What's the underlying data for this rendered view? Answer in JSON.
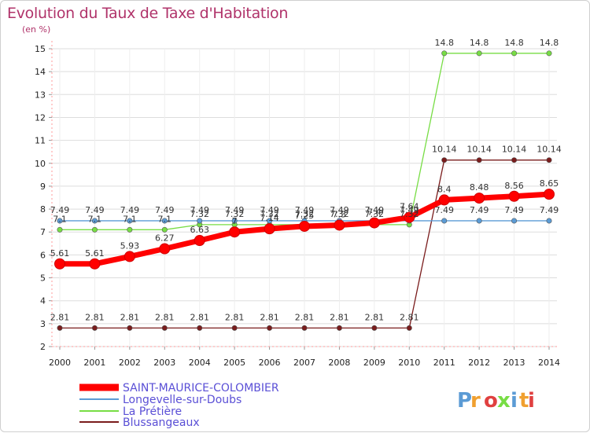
{
  "title": "Evolution du Taux de Taxe d'Habitation",
  "subtitle": "(en %)",
  "logo": "Proxiti",
  "chart_data": {
    "type": "line",
    "title": "Evolution du Taux de Taxe d'Habitation",
    "ylabel": "(en %)",
    "x": [
      "2000",
      "2001",
      "2002",
      "2003",
      "2004",
      "2005",
      "2006",
      "2007",
      "2008",
      "2009",
      "2010",
      "2011",
      "2012",
      "2013",
      "2014"
    ],
    "ylim": [
      2,
      15
    ],
    "yticks": [
      2,
      3,
      4,
      5,
      6,
      7,
      8,
      9,
      10,
      11,
      12,
      13,
      14,
      15
    ],
    "grid": true,
    "legend_position": "bottom-left",
    "series": [
      {
        "name": "SAINT-MAURICE-COLOMBIER",
        "color": "#ff0000",
        "values": [
          5.61,
          5.61,
          5.93,
          6.27,
          6.63,
          7.0,
          7.14,
          7.25,
          7.3,
          7.4,
          7.64,
          8.4,
          8.48,
          8.56,
          8.65
        ],
        "labels": [
          "5.61",
          "5.61",
          "5.93",
          "6.27",
          "6.63",
          "7",
          "7.14",
          "7.25",
          "7.3",
          "7.4",
          "7.64",
          "8.4",
          "8.48",
          "8.56",
          "8.65"
        ]
      },
      {
        "name": "Longevelle-sur-Doubs",
        "color": "#5b9bd5",
        "values": [
          7.49,
          7.49,
          7.49,
          7.49,
          7.49,
          7.49,
          7.49,
          7.49,
          7.49,
          7.49,
          7.49,
          7.49,
          7.49,
          7.49,
          7.49
        ],
        "labels": [
          "7.49",
          "7.49",
          "7.49",
          "7.49",
          "7.49",
          "7.49",
          "7.49",
          "7.49",
          "7.49",
          "7.49",
          "7.49",
          "7.49",
          "7.49",
          "7.49",
          "7.49"
        ]
      },
      {
        "name": "La Prétière",
        "color": "#77dd44",
        "values": [
          7.1,
          7.1,
          7.1,
          7.1,
          7.32,
          7.32,
          7.32,
          7.32,
          7.32,
          7.32,
          7.32,
          14.8,
          14.8,
          14.8,
          14.8
        ],
        "labels": [
          "7.1",
          "7.1",
          "7.1",
          "7.1",
          "7.32",
          "7.32",
          "7.32",
          "7.32",
          "7.32",
          "7.32",
          "7.32",
          "14.8",
          "14.8",
          "14.8",
          "14.8"
        ]
      },
      {
        "name": "Blussangeaux",
        "color": "#7a1c1c",
        "values": [
          2.81,
          2.81,
          2.81,
          2.81,
          2.81,
          2.81,
          2.81,
          2.81,
          2.81,
          2.81,
          2.81,
          10.14,
          10.14,
          10.14,
          10.14
        ],
        "labels": [
          "2.81",
          "2.81",
          "2.81",
          "2.81",
          "2.81",
          "2.81",
          "2.81",
          "2.81",
          "2.81",
          "2.81",
          "2.81",
          "10.14",
          "10.14",
          "10.14",
          "10.14"
        ]
      }
    ]
  }
}
